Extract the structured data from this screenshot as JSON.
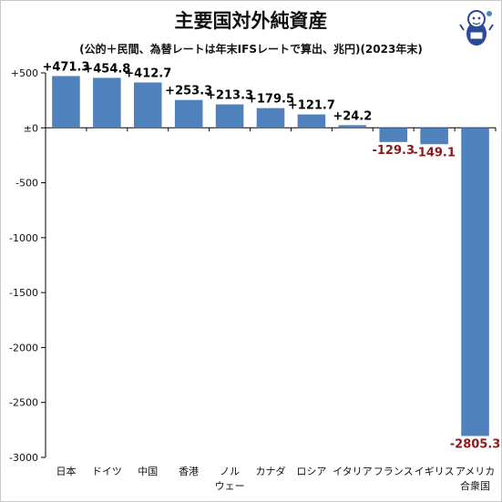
{
  "title": "主要国対外純資産",
  "subtitle": "(公的＋民間、為替レートは年末IFSレートで算出、兆円)(2023年末)",
  "chart_data": {
    "type": "bar",
    "categories": [
      "日本",
      "ドイツ",
      "中国",
      "香港",
      "ノルウェー",
      "カナダ",
      "ロシア",
      "イタリア",
      "フランス",
      "イギリス",
      "アメリカ合衆国"
    ],
    "category_lines": [
      [
        "日本"
      ],
      [
        "ドイツ"
      ],
      [
        "中国"
      ],
      [
        "香港"
      ],
      [
        "ノル",
        "ウェー"
      ],
      [
        "カナダ"
      ],
      [
        "ロシア"
      ],
      [
        "イタリア"
      ],
      [
        "フランス"
      ],
      [
        "イギリス"
      ],
      [
        "アメリカ",
        "合衆国"
      ]
    ],
    "values": [
      471.3,
      454.8,
      412.7,
      253.3,
      213.3,
      179.5,
      121.7,
      24.2,
      -129.3,
      -149.1,
      -2805.3
    ],
    "data_labels": [
      "+471.3",
      "+454.8",
      "+412.7",
      "+253.3",
      "+213.3",
      "+179.5",
      "+121.7",
      "+24.2",
      "-129.3",
      "-149.1",
      "-2805.3"
    ],
    "y_ticks": [
      500,
      0,
      -500,
      -1000,
      -1500,
      -2000,
      -2500,
      -3000
    ],
    "y_tick_labels": [
      "+500",
      "±0",
      "-500",
      "-1000",
      "-1500",
      "-2000",
      "-2500",
      "-3000"
    ],
    "ylim": [
      -3000,
      500
    ],
    "grid": false,
    "colors": {
      "bar": "#4F81BD",
      "positive_label": "#000000",
      "negative_label": "#8B1A1A",
      "axis": "#000000"
    }
  }
}
